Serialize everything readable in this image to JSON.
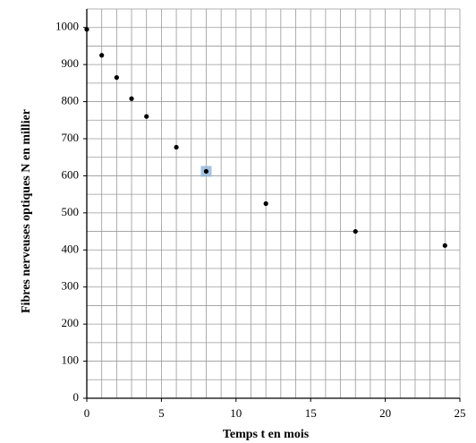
{
  "chart_data": {
    "type": "scatter",
    "xlabel": "Temps t en mois",
    "ylabel": "Fibres nerveuses optiques N en millier",
    "x": [
      0,
      1,
      2,
      3,
      4,
      6,
      8,
      12,
      18,
      24
    ],
    "values": [
      995,
      925,
      865,
      808,
      760,
      677,
      612,
      525,
      450,
      412
    ],
    "color": "#000000",
    "xlim": [
      0,
      25
    ],
    "ylim": [
      0,
      1050
    ],
    "xticks": [
      0,
      5,
      10,
      15,
      20,
      25
    ],
    "yticks": [
      0,
      100,
      200,
      300,
      400,
      500,
      600,
      700,
      800,
      900,
      1000
    ],
    "grid": true
  }
}
